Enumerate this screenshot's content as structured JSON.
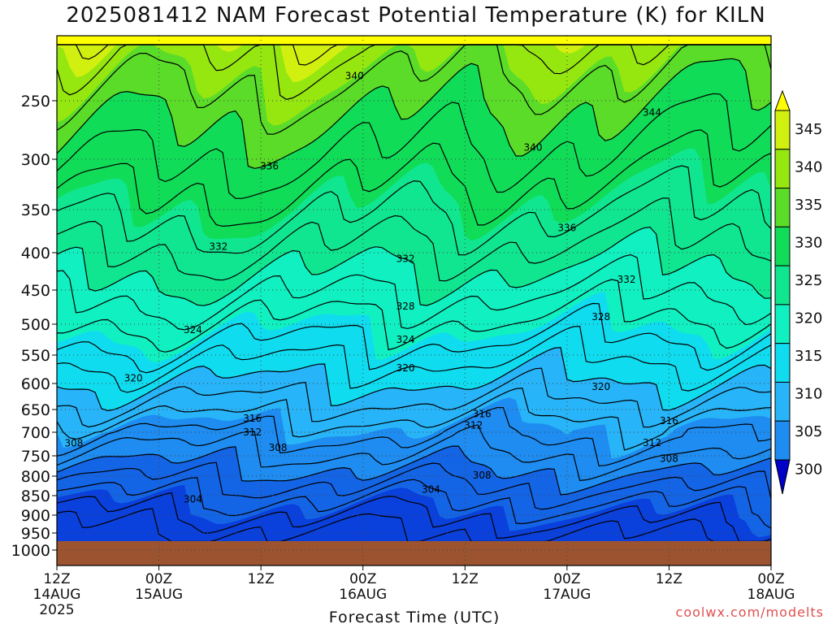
{
  "title": "2025081412 NAM Forecast Potential Temperature (K) for KILN",
  "credit": "coolwx.com/modelts",
  "colors": {
    "ground": "#9c5430",
    "bands": [
      "#0000c8",
      "#0a40dc",
      "#1464e6",
      "#1e8cf0",
      "#28b4f8",
      "#10dcf0",
      "#10f0c0",
      "#10e690",
      "#10dc58",
      "#5adc28",
      "#96e610",
      "#d2f010",
      "#ffff00"
    ]
  },
  "chart_data": {
    "type": "heatmap",
    "title": "2025081412 NAM Forecast Potential Temperature (K) for KILN",
    "xlabel": "Forecast Time (UTC)",
    "ylabel": "",
    "xlim_hours": [
      0,
      84
    ],
    "x_ticks": [
      {
        "hour": 0,
        "label": "12Z",
        "sub": "14AUG",
        "sub2": "2025"
      },
      {
        "hour": 12,
        "label": "00Z",
        "sub": "15AUG",
        "sub2": ""
      },
      {
        "hour": 24,
        "label": "12Z",
        "sub": "",
        "sub2": ""
      },
      {
        "hour": 36,
        "label": "00Z",
        "sub": "16AUG",
        "sub2": ""
      },
      {
        "hour": 48,
        "label": "12Z",
        "sub": "",
        "sub2": ""
      },
      {
        "hour": 60,
        "label": "00Z",
        "sub": "17AUG",
        "sub2": ""
      },
      {
        "hour": 72,
        "label": "12Z",
        "sub": "",
        "sub2": ""
      },
      {
        "hour": 84,
        "label": "00Z",
        "sub": "18AUG",
        "sub2": ""
      }
    ],
    "y_ticks_hPa": [
      250,
      300,
      350,
      400,
      450,
      500,
      550,
      600,
      650,
      700,
      750,
      800,
      850,
      900,
      950,
      1000
    ],
    "y_range_hPa": [
      200,
      1000
    ],
    "surface_hPa": 972,
    "colorbar": {
      "min": 300,
      "max": 345,
      "step": 5,
      "labels": [
        "345",
        "340",
        "335",
        "330",
        "325",
        "320",
        "315",
        "310",
        "305",
        "300"
      ]
    },
    "contour_interval_K": 2,
    "contour_labels": [
      {
        "value": "340",
        "hour": 35,
        "hPa": 228
      },
      {
        "value": "344",
        "hour": 70,
        "hPa": 260
      },
      {
        "value": "340",
        "hour": 56,
        "hPa": 290
      },
      {
        "value": "336",
        "hour": 25,
        "hPa": 307
      },
      {
        "value": "336",
        "hour": 60,
        "hPa": 371
      },
      {
        "value": "332",
        "hour": 19,
        "hPa": 393
      },
      {
        "value": "332",
        "hour": 41,
        "hPa": 408
      },
      {
        "value": "332",
        "hour": 67,
        "hPa": 436
      },
      {
        "value": "328",
        "hour": 41,
        "hPa": 474
      },
      {
        "value": "328",
        "hour": 64,
        "hPa": 489
      },
      {
        "value": "324",
        "hour": 16,
        "hPa": 509
      },
      {
        "value": "324",
        "hour": 41,
        "hPa": 525
      },
      {
        "value": "320",
        "hour": 9,
        "hPa": 591
      },
      {
        "value": "320",
        "hour": 41,
        "hPa": 573
      },
      {
        "value": "320",
        "hour": 64,
        "hPa": 606
      },
      {
        "value": "316",
        "hour": 23,
        "hPa": 670
      },
      {
        "value": "316",
        "hour": 50,
        "hPa": 660
      },
      {
        "value": "316",
        "hour": 72,
        "hPa": 675
      },
      {
        "value": "312",
        "hour": 23,
        "hPa": 700
      },
      {
        "value": "312",
        "hour": 49,
        "hPa": 685
      },
      {
        "value": "312",
        "hour": 70,
        "hPa": 722
      },
      {
        "value": "308",
        "hour": 2,
        "hPa": 723
      },
      {
        "value": "308",
        "hour": 26,
        "hPa": 733
      },
      {
        "value": "308",
        "hour": 50,
        "hPa": 798
      },
      {
        "value": "308",
        "hour": 72,
        "hPa": 757
      },
      {
        "value": "304",
        "hour": 16,
        "hPa": 859
      },
      {
        "value": "304",
        "hour": 44,
        "hPa": 834
      }
    ]
  }
}
